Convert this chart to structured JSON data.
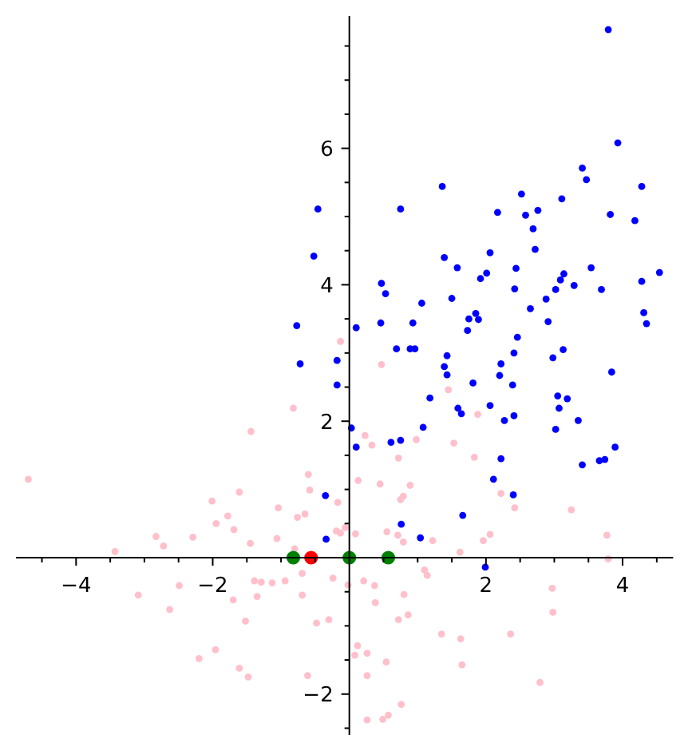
{
  "chart_data": {
    "type": "scatter",
    "marker": "circle",
    "xlim": [
      -4.88,
      4.74
    ],
    "ylim": [
      -2.6,
      7.94
    ],
    "xticks": [
      {
        "value": -4.5,
        "label": null
      },
      {
        "value": -4,
        "label": "−4"
      },
      {
        "value": -3.5,
        "label": null
      },
      {
        "value": -3,
        "label": null
      },
      {
        "value": -2.5,
        "label": null
      },
      {
        "value": -2,
        "label": "−2"
      },
      {
        "value": -1.5,
        "label": null
      },
      {
        "value": -1,
        "label": null
      },
      {
        "value": -0.5,
        "label": null
      },
      {
        "value": 0.5,
        "label": null
      },
      {
        "value": 1,
        "label": null
      },
      {
        "value": 1.5,
        "label": null
      },
      2,
      {
        "value": 2.5,
        "label": null
      },
      {
        "value": 3,
        "label": null
      },
      {
        "value": 3.5,
        "label": null
      },
      4,
      {
        "value": 4.5,
        "label": null
      }
    ],
    "yticks": [
      {
        "value": -2.5,
        "label": null
      },
      {
        "value": -2,
        "label": "−2"
      },
      {
        "value": -1.5,
        "label": null
      },
      {
        "value": -1,
        "label": null
      },
      {
        "value": -0.5,
        "label": null
      },
      {
        "value": 0.5,
        "label": null
      },
      {
        "value": 1,
        "label": null
      },
      {
        "value": 1.5,
        "label": null
      },
      2,
      {
        "value": 2.5,
        "label": null
      },
      {
        "value": 3,
        "label": null
      },
      {
        "value": 3.5,
        "label": null
      },
      4,
      {
        "value": 4.5,
        "label": null
      },
      {
        "value": 5,
        "label": null
      },
      {
        "value": 5.5,
        "label": null
      },
      6,
      {
        "value": 6.5,
        "label": null
      },
      {
        "value": 7,
        "label": null
      },
      {
        "value": 7.5,
        "label": null
      }
    ],
    "series": [
      {
        "color": "#ffc0cb",
        "x": [
          -4.7,
          -3.43,
          -2.83,
          -2.72,
          -2.29,
          -2.01,
          -1.95,
          -1.78,
          -1.69,
          -1.61,
          -3.09,
          -2.49,
          -2.63,
          -1.7,
          -1.96,
          -2.2,
          -1.61,
          -0.82,
          -1.44,
          -1.04,
          -1.45,
          -1.06,
          -0.76,
          -0.65,
          -0.6,
          -0.58,
          -0.8,
          -0.17,
          -0.19,
          -0.13,
          -0.06,
          0.09,
          0.13,
          0.23,
          0.33,
          0.45,
          0.72,
          0.75,
          0.79,
          0.89,
          0.98,
          0.55,
          0.71,
          0.79,
          1.22,
          1.53,
          1.45,
          1.62,
          -0.69,
          -0.94,
          -1.13,
          -1.29,
          -1.39,
          -1.35,
          -1.52,
          -0.69,
          -0.24,
          -0.02,
          0.21,
          0.37,
          0.38,
          0.8,
          0.86,
          0.72,
          1.1,
          1.14,
          1.35,
          1.63,
          -0.48,
          -0.3,
          0.12,
          0.26,
          0.08,
          0.54,
          0.26,
          -1.48,
          -0.61,
          0.76,
          0.57,
          0.49,
          0.26,
          1.65,
          1.88,
          1.83,
          2.22,
          2.42,
          3.25,
          2.06,
          1.96,
          3.77,
          3.79,
          2.97,
          2.98,
          2.36,
          2.79,
          -0.13,
          0.47
        ],
        "values": [
          1.15,
          0.09,
          0.31,
          0.17,
          0.3,
          0.83,
          0.5,
          0.61,
          0.41,
          0.96,
          -0.55,
          -0.41,
          -0.76,
          -0.62,
          -1.35,
          -1.48,
          -1.62,
          2.19,
          1.85,
          0.73,
          0.21,
          0.28,
          0.59,
          0.64,
          1.22,
          0.99,
          0.13,
          0.81,
          0.39,
          0.36,
          0.44,
          0.35,
          1.13,
          1.79,
          1.65,
          1.08,
          1.46,
          0.85,
          0.9,
          1.06,
          1.73,
          0.38,
          0.33,
          0.23,
          0.25,
          1.68,
          2.46,
          0.08,
          -0.23,
          -0.34,
          -0.37,
          -0.36,
          -0.34,
          -0.57,
          -0.93,
          -0.55,
          -0.3,
          -0.4,
          -0.34,
          -0.41,
          -0.66,
          -0.54,
          -0.84,
          -0.91,
          -0.18,
          -0.26,
          -1.12,
          -1.19,
          -0.96,
          -0.91,
          -1.29,
          -1.4,
          -1.43,
          -1.53,
          -1.73,
          -1.75,
          -1.73,
          -2.15,
          -2.31,
          -2.37,
          -2.38,
          -1.57,
          2.1,
          1.47,
          0.94,
          0.73,
          0.7,
          0.34,
          0.25,
          0.33,
          -0.02,
          -0.45,
          -0.8,
          -1.12,
          -1.83,
          3.17,
          2.83
        ]
      },
      {
        "color": "#0000ff",
        "x": [
          -0.46,
          -0.52,
          0.47,
          0.53,
          0.75,
          1.36,
          1.39,
          1.58,
          1.5,
          1.06,
          -0.77,
          0.1,
          0.46,
          0.93,
          0.69,
          0.89,
          0.96,
          1.43,
          1.39,
          1.43,
          -0.72,
          -0.18,
          -0.18,
          3.79,
          3.93,
          3.41,
          3.47,
          4.28,
          2.52,
          3.11,
          2.17,
          2.58,
          2.76,
          3.82,
          4.18,
          2.69,
          2.72,
          2.06,
          2.44,
          2.01,
          1.92,
          3.14,
          3.09,
          3.54,
          4.54,
          4.28,
          2.42,
          3.02,
          3.29,
          3.69,
          2.88,
          2.65,
          1.85,
          1.75,
          1.89,
          1.73,
          2.91,
          4.31,
          4.35,
          2.46,
          2.41,
          3.13,
          2.98,
          2.22,
          2.2,
          3.84,
          1.81,
          2.39,
          3.05,
          3.19,
          3.07,
          1.59,
          1.64,
          2.06,
          2.27,
          2.41,
          3.35,
          3.02,
          3.89,
          3.41,
          3.66,
          3.74,
          2.22,
          2.11,
          2.4,
          1.66,
          1.99,
          0.03,
          0.1,
          -0.35,
          -0.34,
          0.61,
          0.75,
          1.08,
          1.18,
          0.76,
          1.04
        ],
        "values": [
          5.11,
          4.42,
          4.02,
          3.87,
          5.11,
          5.44,
          4.4,
          4.25,
          3.8,
          3.73,
          3.4,
          3.37,
          3.44,
          3.44,
          3.06,
          3.06,
          3.06,
          2.96,
          2.8,
          2.68,
          2.84,
          2.89,
          2.53,
          7.74,
          6.08,
          5.71,
          5.54,
          5.44,
          5.33,
          5.26,
          5.06,
          5.02,
          5.09,
          5.03,
          4.94,
          4.82,
          4.52,
          4.47,
          4.24,
          4.17,
          4.09,
          4.16,
          4.07,
          4.25,
          4.18,
          4.05,
          3.94,
          3.93,
          3.99,
          3.93,
          3.79,
          3.65,
          3.58,
          3.5,
          3.49,
          3.33,
          3.46,
          3.59,
          3.43,
          3.23,
          3.0,
          3.05,
          2.93,
          2.84,
          2.67,
          2.72,
          2.56,
          2.53,
          2.37,
          2.33,
          2.19,
          2.19,
          2.11,
          2.23,
          2.01,
          2.08,
          2.01,
          1.88,
          1.62,
          1.36,
          1.42,
          1.44,
          1.45,
          1.15,
          0.92,
          0.62,
          -0.14,
          1.9,
          1.62,
          0.91,
          0.27,
          1.69,
          1.72,
          1.91,
          2.34,
          0.49,
          0.29
        ]
      },
      {
        "color": "#008000",
        "x": [
          -0.82,
          0,
          0.57
        ],
        "values": [
          0,
          0,
          0
        ]
      },
      {
        "color": "#ff0000",
        "x": [
          -0.56
        ],
        "values": [
          0
        ]
      }
    ]
  }
}
